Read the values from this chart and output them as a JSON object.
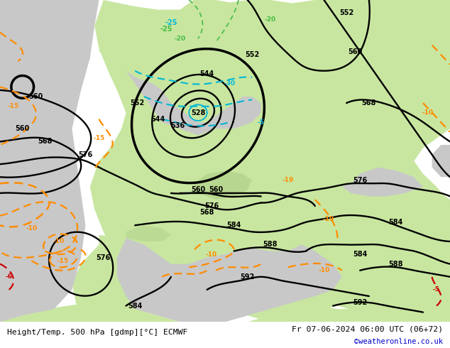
{
  "title_left": "Height/Temp. 500 hPa [gdmp][°C] ECMWF",
  "title_right": "Fr 07-06-2024 06:00 UTC (06+72)",
  "credit": "©weatheronline.co.uk",
  "land_color": "#c8e6a0",
  "sea_color": "#c8c8c8",
  "mountain_color": "#aaaaaa",
  "white_bg": "#ffffff",
  "z500_color": "#000000",
  "temp_orange_color": "#ff8c00",
  "temp_red_color": "#cc0000",
  "z850_cyan_color": "#00b8d4",
  "green_temp_color": "#44bb44",
  "title_fontsize": 8.5,
  "credit_color": "#0000cc",
  "bottom_bar_color": "#ffffff"
}
